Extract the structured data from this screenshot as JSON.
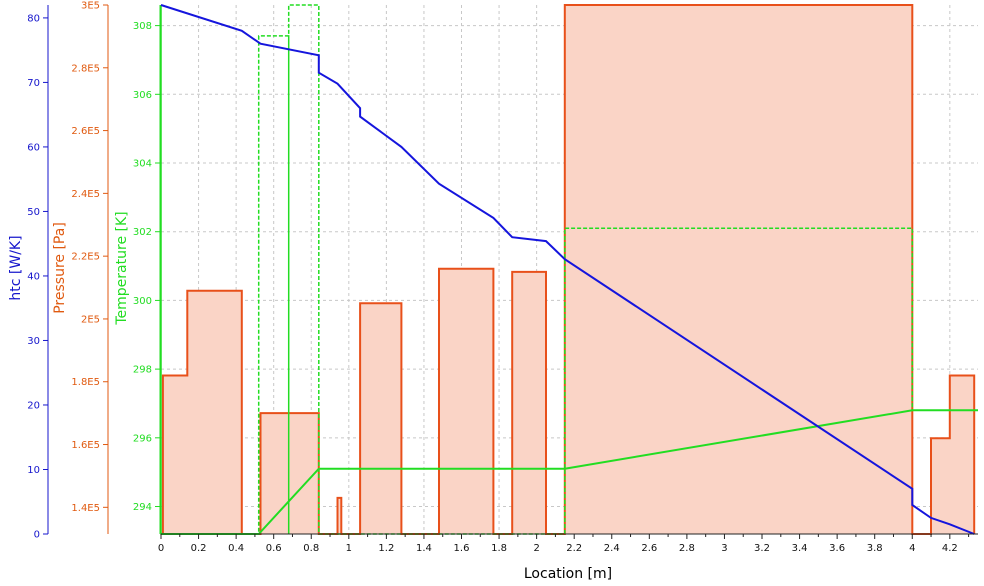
{
  "chart_data": {
    "type": "line",
    "xlabel": "Location [m]",
    "xlim": [
      0,
      4.35
    ],
    "x_ticks": [
      0,
      0.2,
      0.4,
      0.6,
      0.8,
      1,
      1.2,
      1.4,
      1.6,
      1.8,
      2,
      2.2,
      2.4,
      2.6,
      2.8,
      3,
      3.2,
      3.4,
      3.6,
      3.8,
      4,
      4.2
    ],
    "x_tick_labels": [
      "0",
      "0.2",
      "0.4",
      "0.6",
      "0.8",
      "1",
      "1.2",
      "1.4",
      "1.6",
      "1.8",
      "2",
      "2.2",
      "2.4",
      "2.6",
      "2.8",
      "3",
      "3.2",
      "3.4",
      "3.6",
      "3.8",
      "4",
      "4.2"
    ],
    "grid": true,
    "axes": [
      {
        "id": "htc",
        "label": "htc [W/K]",
        "color": "#1515cc",
        "range": [
          0,
          82
        ],
        "ticks": [
          0,
          10,
          20,
          30,
          40,
          50,
          60,
          70,
          80
        ],
        "tick_labels": [
          "0",
          "10",
          "20",
          "30",
          "40",
          "50",
          "60",
          "70",
          "80"
        ]
      },
      {
        "id": "pressure",
        "label": "Pressure [Pa]",
        "color": "#e05a10",
        "range": [
          131500,
          300000
        ],
        "ticks": [
          140000,
          160000,
          180000,
          200000,
          220000,
          240000,
          260000,
          280000,
          300000
        ],
        "tick_labels": [
          "1.4E5",
          "1.6E5",
          "1.8E5",
          "2E5",
          "2.2E5",
          "2.4E5",
          "2.6E5",
          "2.8E5",
          "3E5"
        ]
      },
      {
        "id": "temperature",
        "label": "Temperature [K]",
        "color": "#22dd22",
        "range": [
          293.2,
          308.6
        ],
        "ticks": [
          294,
          296,
          298,
          300,
          302,
          304,
          306,
          308
        ],
        "tick_labels": [
          "294",
          "296",
          "298",
          "300",
          "302",
          "304",
          "306",
          "308"
        ]
      }
    ],
    "series": [
      {
        "axis": "pressure",
        "style": "step-filled",
        "color": "#e8501a",
        "fill": "#fad4c6",
        "points": [
          [
            0.01,
            131500
          ],
          [
            0.01,
            182000
          ],
          [
            0.14,
            182000
          ],
          [
            0.14,
            209000
          ],
          [
            0.43,
            209000
          ],
          [
            0.43,
            131500
          ],
          [
            0.53,
            131500
          ],
          [
            0.53,
            170000
          ],
          [
            0.84,
            170000
          ],
          [
            0.84,
            131500
          ],
          [
            0.94,
            131500
          ],
          [
            0.94,
            143000
          ],
          [
            0.96,
            143000
          ],
          [
            0.96,
            131500
          ],
          [
            1.06,
            131500
          ],
          [
            1.06,
            205000
          ],
          [
            1.28,
            205000
          ],
          [
            1.28,
            131500
          ],
          [
            1.48,
            131500
          ],
          [
            1.48,
            216000
          ],
          [
            1.77,
            216000
          ],
          [
            1.77,
            131500
          ],
          [
            1.87,
            131500
          ],
          [
            1.87,
            215000
          ],
          [
            2.05,
            215000
          ],
          [
            2.05,
            131500
          ],
          [
            2.15,
            131500
          ],
          [
            2.15,
            300000
          ],
          [
            4.0,
            300000
          ],
          [
            4.0,
            131500
          ],
          [
            4.1,
            131500
          ],
          [
            4.1,
            162000
          ],
          [
            4.2,
            162000
          ],
          [
            4.2,
            182000
          ],
          [
            4.33,
            182000
          ],
          [
            4.33,
            131500
          ]
        ]
      },
      {
        "axis": "temperature",
        "style": "solid",
        "color": "#22dd22",
        "points": [
          [
            0,
            293.2
          ],
          [
            0.52,
            293.2
          ],
          [
            0.84,
            295.1
          ],
          [
            2.15,
            295.1
          ],
          [
            4.0,
            296.8
          ],
          [
            4.35,
            296.8
          ]
        ]
      },
      {
        "axis": "temperature",
        "style": "dashed",
        "color": "#22dd22",
        "points": [
          [
            0,
            293.2
          ],
          [
            0,
            308.6
          ],
          [
            0,
            293.2
          ],
          [
            0.52,
            293.2
          ],
          [
            0.52,
            307.7
          ],
          [
            0.68,
            307.7
          ],
          [
            0.68,
            293.2
          ],
          [
            0.68,
            308.6
          ],
          [
            0.84,
            308.6
          ],
          [
            0.84,
            293.2
          ],
          [
            2.15,
            293.2
          ],
          [
            2.15,
            302.1
          ],
          [
            4.0,
            302.1
          ],
          [
            4.0,
            296.8
          ],
          [
            4.35,
            296.8
          ]
        ]
      },
      {
        "axis": "htc",
        "style": "solid",
        "color": "#1515dd",
        "points": [
          [
            0,
            82
          ],
          [
            0.43,
            78
          ],
          [
            0.53,
            76
          ],
          [
            0.84,
            74.2
          ],
          [
            0.84,
            71.5
          ],
          [
            0.94,
            69.8
          ],
          [
            1.06,
            66
          ],
          [
            1.06,
            64.7
          ],
          [
            1.28,
            60
          ],
          [
            1.48,
            54.3
          ],
          [
            1.77,
            49
          ],
          [
            1.87,
            46
          ],
          [
            2.05,
            45.4
          ],
          [
            2.15,
            42.6
          ],
          [
            4.0,
            7
          ],
          [
            4.0,
            4.5
          ],
          [
            4.1,
            2.5
          ],
          [
            4.2,
            1.5
          ],
          [
            4.33,
            0
          ]
        ]
      }
    ]
  }
}
